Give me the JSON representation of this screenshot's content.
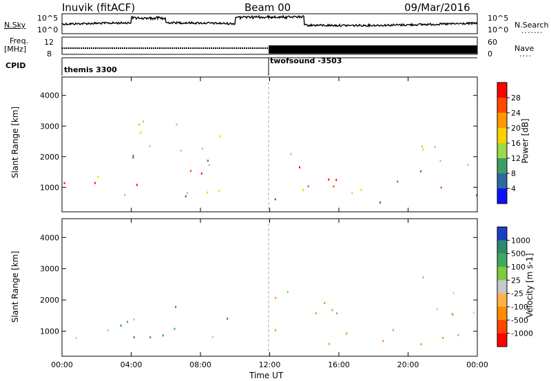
{
  "header": {
    "station": "Inuvik (fitACF)",
    "beam": "Beam 00",
    "date": "09/Mar/2016"
  },
  "top_panels": {
    "nsky_label": "N.Sky",
    "nsearch_label": "N.Search",
    "freq_label_1": "Freq.",
    "freq_label_2": "[MHz]",
    "nave_label": "Nave",
    "cpid_label": "CPID",
    "nsky_ticks": [
      "10^5",
      "10^0"
    ],
    "nsearch_ticks": [
      "10^5",
      "10^0"
    ],
    "freq_ticks": [
      "12",
      "8"
    ],
    "nave_ticks": [
      "60",
      "0"
    ],
    "cpid_segments": [
      "themis 3300",
      "twofsound -3503"
    ]
  },
  "chart_data": [
    {
      "type": "heatmap",
      "panel": "power",
      "xlabel": "Time UT",
      "ylabel": "Slant Range [km]",
      "xlim": [
        0,
        24
      ],
      "ylim": [
        200,
        4600
      ],
      "x_ticks": [
        "00:00",
        "04:00",
        "08:00",
        "12:00",
        "16:00",
        "20:00",
        "00:00"
      ],
      "y_ticks": [
        1000,
        2000,
        3000,
        4000
      ],
      "colorbar": {
        "label": "Power [dB]",
        "ticks": [
          "28",
          "24",
          "20",
          "16",
          "12",
          "8",
          "4"
        ],
        "colors": [
          "#ff0000",
          "#ff4a00",
          "#ff9900",
          "#ffd000",
          "#9bd94a",
          "#3e9e63",
          "#2e6aa0",
          "#1010ff"
        ]
      },
      "echo_bands": [
        {
          "t0": 0,
          "t1": 4,
          "r0": 700,
          "r1": 1500,
          "level": "high"
        },
        {
          "t0": 4,
          "t1": 10,
          "r0": 700,
          "r1": 1900,
          "level": "high"
        },
        {
          "t0": 4,
          "t1": 10,
          "r0": 1900,
          "r1": 3500,
          "level": "mid"
        },
        {
          "t0": 12,
          "t1": 16,
          "r0": 600,
          "r1": 2300,
          "level": "high"
        },
        {
          "t0": 16,
          "t1": 21,
          "r0": 500,
          "r1": 1300,
          "level": "mid"
        },
        {
          "t0": 21,
          "t1": 24,
          "r0": 500,
          "r1": 1200,
          "level": "high"
        },
        {
          "t0": 20,
          "t1": 24,
          "r0": 1500,
          "r1": 2800,
          "level": "mid"
        }
      ]
    },
    {
      "type": "heatmap",
      "panel": "velocity",
      "xlabel": "Time UT",
      "ylabel": "Slant Range [km]",
      "xlim": [
        0,
        24
      ],
      "ylim": [
        200,
        4600
      ],
      "x_ticks": [
        "00:00",
        "04:00",
        "08:00",
        "12:00",
        "16:00",
        "20:00",
        "00:00"
      ],
      "y_ticks": [
        1000,
        2000,
        3000,
        4000
      ],
      "colorbar": {
        "label": "Velocity [m s-1]",
        "ticks": [
          "1000",
          "500",
          "100",
          "25",
          "-25",
          "-100",
          "-500",
          "-1000"
        ],
        "colors": [
          "#1a3fbf",
          "#2e8a6e",
          "#3fa860",
          "#7ccc3e",
          "#c8c8c8",
          "#ffb347",
          "#ff8c00",
          "#ff4500",
          "#ff0000"
        ]
      },
      "echo_bands": [
        {
          "t0": 0,
          "t1": 4,
          "r0": 700,
          "r1": 1500,
          "level": "low"
        },
        {
          "t0": 4,
          "t1": 10,
          "r0": 700,
          "r1": 1900,
          "level": "low"
        },
        {
          "t0": 12,
          "t1": 16,
          "r0": 600,
          "r1": 2300,
          "level": "neg"
        },
        {
          "t0": 16,
          "t1": 21,
          "r0": 500,
          "r1": 1300,
          "level": "neg"
        },
        {
          "t0": 21,
          "t1": 24,
          "r0": 500,
          "r1": 1200,
          "level": "neg"
        },
        {
          "t0": 20,
          "t1": 24,
          "r0": 1500,
          "r1": 2800,
          "level": "zero"
        }
      ]
    }
  ]
}
